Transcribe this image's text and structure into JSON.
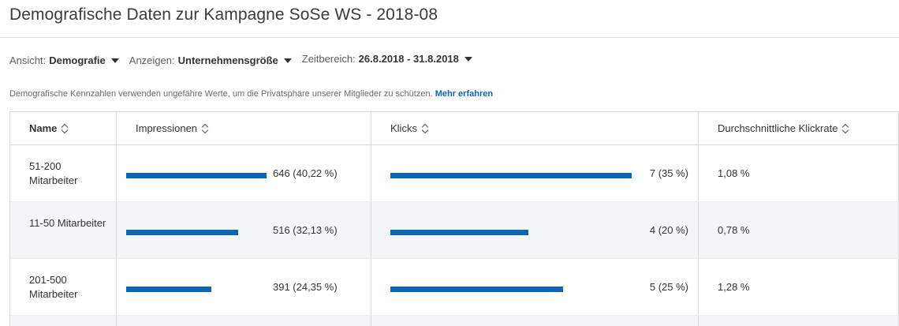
{
  "page": {
    "title": "Demografische Daten zur Kampagne SoSe WS - 2018-08"
  },
  "filters": {
    "view": {
      "label": "Ansicht:",
      "value": "Demografie"
    },
    "show": {
      "label": "Anzeigen:",
      "value": "Unternehmensgröße"
    },
    "range": {
      "label": "Zeitbereich:",
      "value": "26.8.2018 - 31.8.2018"
    }
  },
  "notice": {
    "text": "Demografische Kennzahlen verwenden ungefähre Werte, um die Privatsphäre unserer Mitglieder zu schützen. ",
    "link": "Mehr erfahren"
  },
  "table": {
    "headers": [
      "Name",
      "Impressionen",
      "Klicks",
      "Durchschnittliche Klickrate"
    ],
    "rows": [
      {
        "name": "51-200 Mitarbeiter",
        "impressions": 646,
        "impressions_label": "646 (40,22 %)",
        "impressions_share": 40.22,
        "clicks": 7,
        "clicks_label": "7 (35 %)",
        "clicks_share": 35,
        "ctr": "1,08 %"
      },
      {
        "name": "11-50 Mitarbeiter",
        "impressions": 516,
        "impressions_label": "516 (32,13 %)",
        "impressions_share": 32.13,
        "clicks": 4,
        "clicks_label": "4 (20 %)",
        "clicks_share": 20,
        "ctr": "0,78 %"
      },
      {
        "name": "201-500 Mitarbeiter",
        "impressions": 391,
        "impressions_label": "391 (24,35 %)",
        "impressions_share": 24.35,
        "clicks": 5,
        "clicks_label": "5 (25 %)",
        "clicks_share": 25,
        "ctr": "1,28 %"
      }
    ]
  },
  "colors": {
    "bar": "#0a66b7",
    "link": "#0a66c2",
    "alt_row": "#f3f6f8"
  },
  "icons": {
    "sort": "sort-icon",
    "dropdown": "caret-down-icon"
  }
}
